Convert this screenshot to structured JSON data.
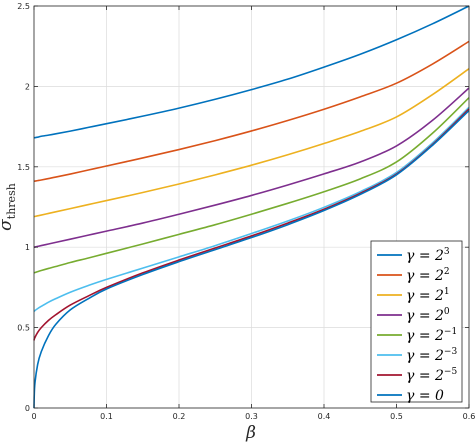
{
  "chart_data": {
    "type": "line",
    "title": "",
    "xlabel": "β",
    "ylabel": "σ",
    "ylabel_subscript": "thresh",
    "xlim": [
      0,
      0.6
    ],
    "ylim": [
      0,
      2.5
    ],
    "xticks": [
      0,
      0.1,
      0.2,
      0.3,
      0.4,
      0.5,
      0.6
    ],
    "xtick_labels": [
      "0",
      "0.1",
      "0.2",
      "0.3",
      "0.4",
      "0.5",
      "0.6"
    ],
    "yticks": [
      0,
      0.5,
      1,
      1.5,
      2,
      2.5
    ],
    "ytick_labels": [
      "0",
      "0.5",
      "1",
      "1.5",
      "2",
      "2.5"
    ],
    "grid": true,
    "legend_position": "bottom-right",
    "x": [
      0,
      0.001,
      0.005,
      0.01,
      0.02,
      0.03,
      0.05,
      0.075,
      0.1,
      0.15,
      0.2,
      0.25,
      0.3,
      0.35,
      0.4,
      0.45,
      0.5,
      0.55,
      0.6
    ],
    "series": [
      {
        "base": "γ = 2",
        "exponent": "3",
        "color": "#0072BD",
        "values": [
          1.68,
          1.681,
          1.684,
          1.69,
          1.697,
          1.705,
          1.722,
          1.745,
          1.768,
          1.815,
          1.865,
          1.92,
          1.98,
          2.045,
          2.12,
          2.2,
          2.29,
          2.39,
          2.5
        ]
      },
      {
        "base": "γ = 2",
        "exponent": "2",
        "color": "#D95319",
        "values": [
          1.41,
          1.411,
          1.414,
          1.418,
          1.427,
          1.436,
          1.455,
          1.48,
          1.505,
          1.555,
          1.607,
          1.663,
          1.723,
          1.788,
          1.858,
          1.935,
          2.02,
          2.14,
          2.28
        ]
      },
      {
        "base": "γ = 2",
        "exponent": "1",
        "color": "#EDB120",
        "values": [
          1.19,
          1.191,
          1.195,
          1.2,
          1.21,
          1.22,
          1.24,
          1.265,
          1.29,
          1.34,
          1.393,
          1.45,
          1.51,
          1.575,
          1.645,
          1.72,
          1.81,
          1.95,
          2.11
        ]
      },
      {
        "base": "γ = 2",
        "exponent": "0",
        "color": "#7E2F8E",
        "values": [
          1.0,
          1.001,
          1.005,
          1.01,
          1.02,
          1.03,
          1.05,
          1.075,
          1.1,
          1.15,
          1.205,
          1.262,
          1.322,
          1.387,
          1.456,
          1.53,
          1.63,
          1.79,
          1.99
        ]
      },
      {
        "base": "γ = 2",
        "exponent": "−1",
        "color": "#77AC30",
        "values": [
          0.84,
          0.842,
          0.848,
          0.855,
          0.868,
          0.88,
          0.905,
          0.933,
          0.962,
          1.02,
          1.08,
          1.14,
          1.205,
          1.273,
          1.345,
          1.425,
          1.53,
          1.71,
          1.93
        ]
      },
      {
        "base": "γ = 2",
        "exponent": "−3",
        "color": "#4DBEEE",
        "values": [
          0.6,
          0.605,
          0.618,
          0.632,
          0.658,
          0.68,
          0.72,
          0.762,
          0.8,
          0.87,
          0.94,
          1.01,
          1.085,
          1.163,
          1.248,
          1.345,
          1.465,
          1.65,
          1.87
        ]
      },
      {
        "base": "γ = 2",
        "exponent": "−5",
        "color": "#A2142F",
        "values": [
          0.42,
          0.436,
          0.47,
          0.5,
          0.545,
          0.58,
          0.64,
          0.697,
          0.75,
          0.84,
          0.92,
          0.995,
          1.07,
          1.15,
          1.236,
          1.335,
          1.455,
          1.64,
          1.86
        ]
      },
      {
        "base": "γ = 0",
        "exponent": "",
        "color": "#0072BD",
        "values": [
          0,
          0.14,
          0.27,
          0.35,
          0.45,
          0.52,
          0.61,
          0.68,
          0.74,
          0.83,
          0.91,
          0.985,
          1.06,
          1.14,
          1.228,
          1.328,
          1.45,
          1.635,
          1.85
        ]
      }
    ]
  }
}
